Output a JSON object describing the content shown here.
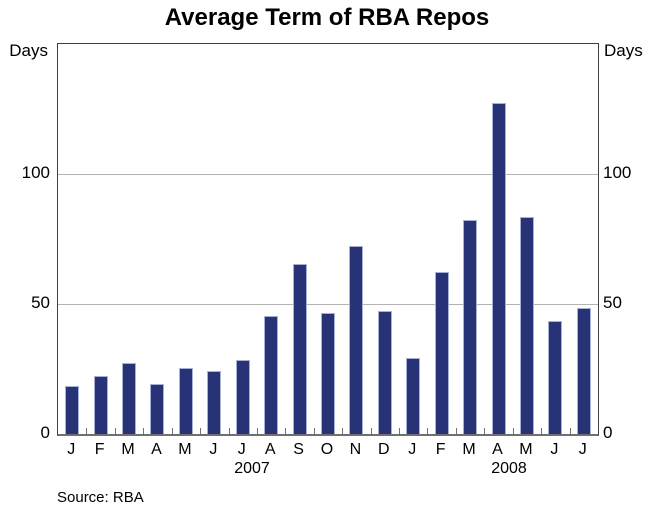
{
  "title": "Average Term of RBA Repos",
  "unit_label_left": "Days",
  "unit_label_right": "Days",
  "source_note": "Source: RBA",
  "colors": {
    "bar_fill": "#283377",
    "bar_edge": "#a9b0d5",
    "gridline": "#b3b3b3",
    "axis_frame": "#3f3f3f",
    "text": "#000000"
  },
  "chart_data": {
    "type": "bar",
    "title": "Average Term of RBA Repos",
    "ylabel": "Days",
    "ylabel_right": "Days",
    "ylim": [
      0,
      150
    ],
    "yticks": [
      0,
      50,
      100
    ],
    "grid": "horizontal gridlines at 50 and 100",
    "legend_position": "none",
    "categories": [
      "J",
      "F",
      "M",
      "A",
      "M",
      "J",
      "J",
      "A",
      "S",
      "O",
      "N",
      "D",
      "J",
      "F",
      "M",
      "A",
      "M",
      "J",
      "J"
    ],
    "series": [
      {
        "name": "Average term of RBA repos (days)",
        "values": [
          18,
          22,
          27,
          19,
          25,
          24,
          28,
          45,
          65,
          46,
          72,
          47,
          29,
          62,
          82,
          127,
          83,
          43,
          48
        ]
      }
    ],
    "years": [
      {
        "label": "2007",
        "months": 12
      },
      {
        "label": "2008",
        "months": 7
      }
    ],
    "source": "Source: RBA"
  }
}
